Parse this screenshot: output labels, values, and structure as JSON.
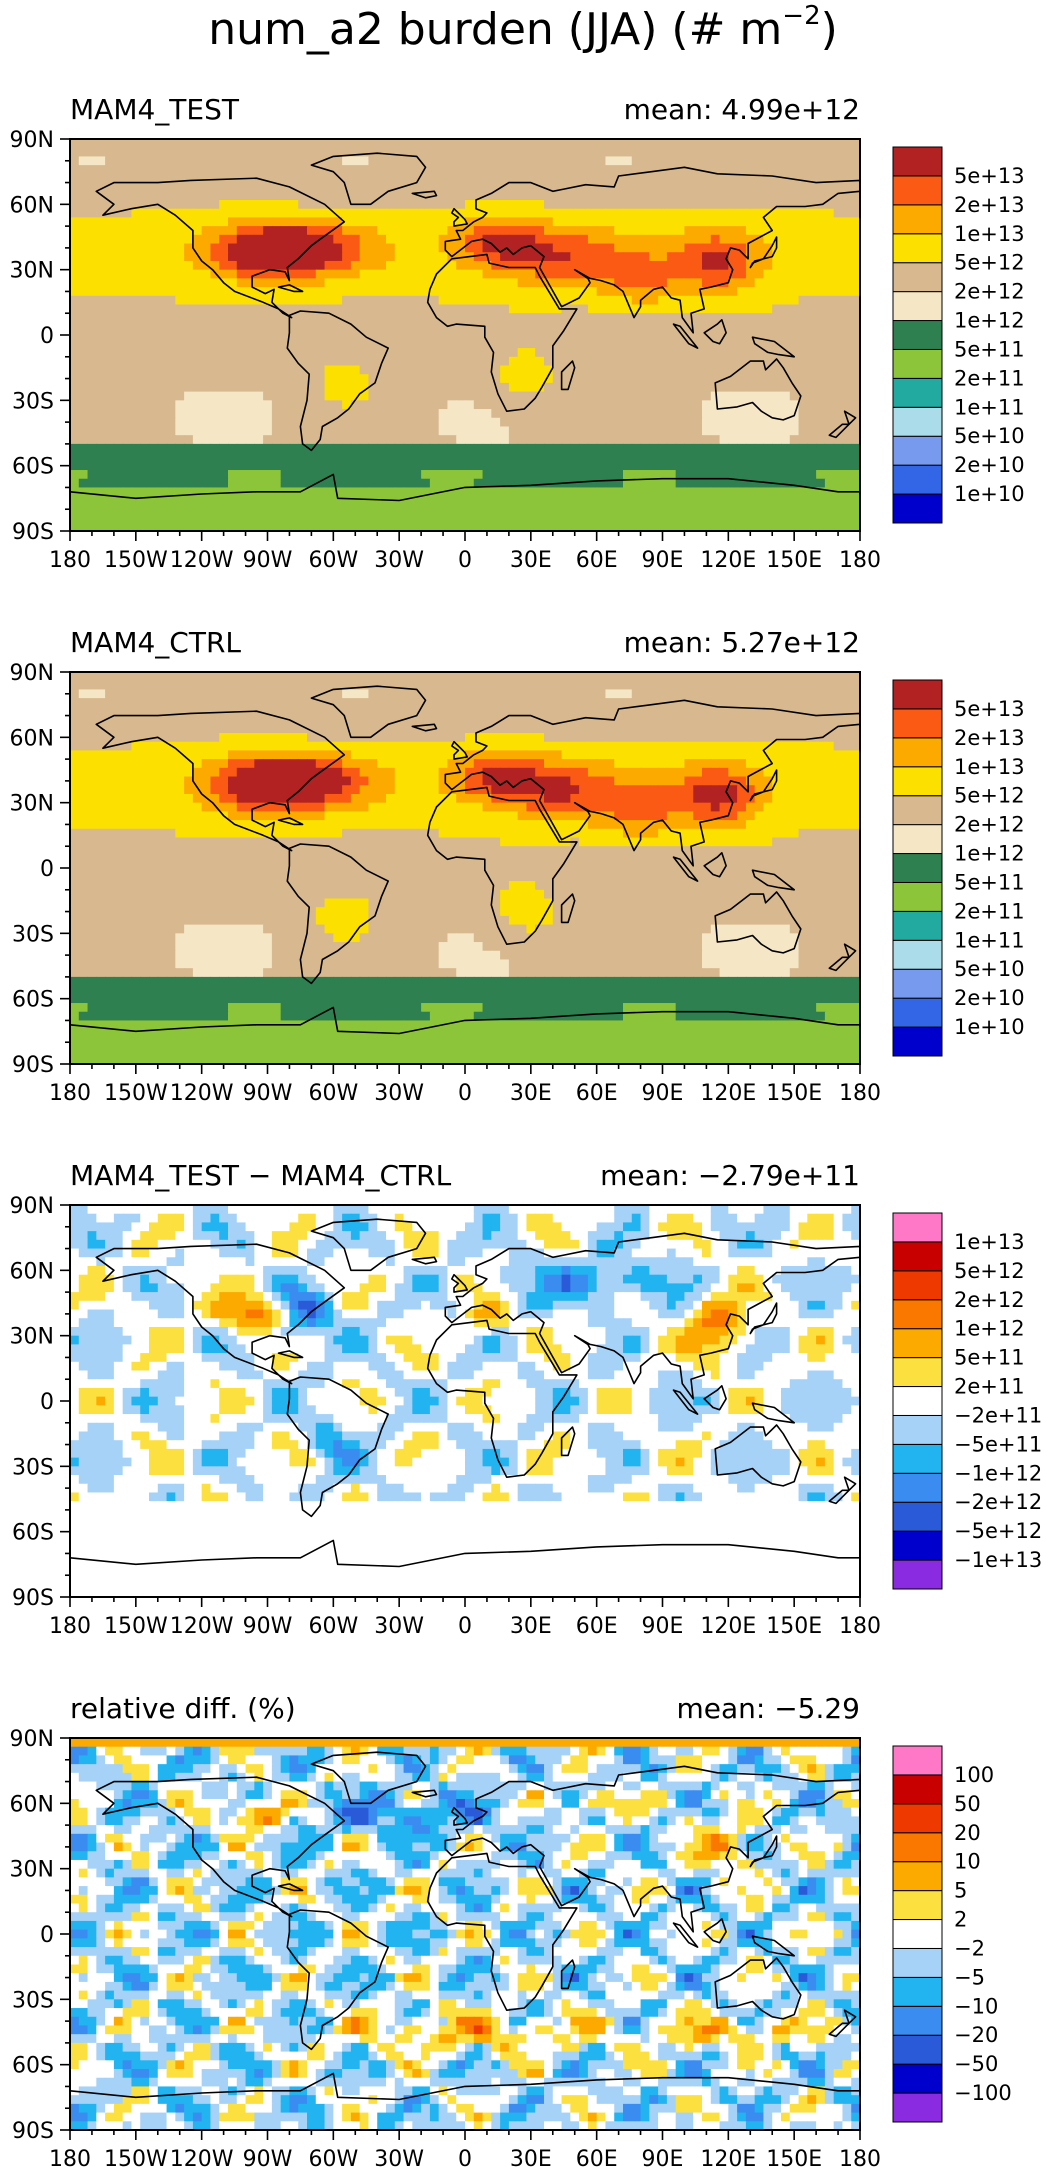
{
  "figure": {
    "title_main": "num_a2 burden (JJA) (# m",
    "title_sup": "−2",
    "title_close": ")"
  },
  "lat_labels": [
    "90N",
    "60N",
    "30N",
    "0",
    "30S",
    "60S",
    "90S"
  ],
  "lon_labels": [
    "180",
    "150W",
    "120W",
    "90W",
    "60W",
    "30W",
    "0",
    "30E",
    "60E",
    "90E",
    "120E",
    "150E",
    "180"
  ],
  "panels": [
    {
      "id": "test",
      "left_title": "MAM4_TEST",
      "mean_text": "mean: 4.99e+12",
      "levels": [
        "5e+13",
        "2e+13",
        "1e+13",
        "5e+12",
        "2e+12",
        "1e+12",
        "5e+11",
        "2e+11",
        "1e+11",
        "5e+10",
        "2e+10",
        "1e+10"
      ],
      "colors": [
        "#0000cc",
        "#3366e6",
        "#7799ee",
        "#aadcea",
        "#22aaa0",
        "#8cc43a",
        "#2e8050",
        "#f5e6c6",
        "#d8b88e",
        "#fce000",
        "#fcaa00",
        "#fa5a14",
        "#b22222"
      ]
    },
    {
      "id": "ctrl",
      "left_title": "MAM4_CTRL",
      "mean_text": "mean: 5.27e+12",
      "levels": [
        "5e+13",
        "2e+13",
        "1e+13",
        "5e+12",
        "2e+12",
        "1e+12",
        "5e+11",
        "2e+11",
        "1e+11",
        "5e+10",
        "2e+10",
        "1e+10"
      ],
      "colors": [
        "#0000cc",
        "#3366e6",
        "#7799ee",
        "#aadcea",
        "#22aaa0",
        "#8cc43a",
        "#2e8050",
        "#f5e6c6",
        "#d8b88e",
        "#fce000",
        "#fcaa00",
        "#fa5a14",
        "#b22222"
      ]
    },
    {
      "id": "diff",
      "left_title": "MAM4_TEST − MAM4_CTRL",
      "mean_text": "mean: −2.79e+11",
      "levels": [
        "1e+13",
        "5e+12",
        "2e+12",
        "1e+12",
        "5e+11",
        "2e+11",
        "−2e+11",
        "−5e+11",
        "−1e+12",
        "−2e+12",
        "−5e+12",
        "−1e+13"
      ],
      "colors": [
        "#8a2be2",
        "#0000cc",
        "#2a5ad8",
        "#3a8cf0",
        "#22b4f0",
        "#a6d2f8",
        "#ffffff",
        "#fce040",
        "#fcaa00",
        "#fa7800",
        "#ee3a00",
        "#c80000",
        "#ff78c8"
      ]
    },
    {
      "id": "rel",
      "left_title": "relative diff. (%)",
      "mean_text": "mean: −5.29",
      "levels": [
        "100",
        "50",
        "20",
        "10",
        "5",
        "2",
        "−2",
        "−5",
        "−10",
        "−20",
        "−50",
        "−100"
      ],
      "colors": [
        "#8a2be2",
        "#0000cc",
        "#2a5ad8",
        "#3a8cf0",
        "#22b4f0",
        "#a6d2f8",
        "#ffffff",
        "#fce040",
        "#fcaa00",
        "#fa7800",
        "#ee3a00",
        "#c80000",
        "#ff78c8"
      ]
    }
  ]
}
